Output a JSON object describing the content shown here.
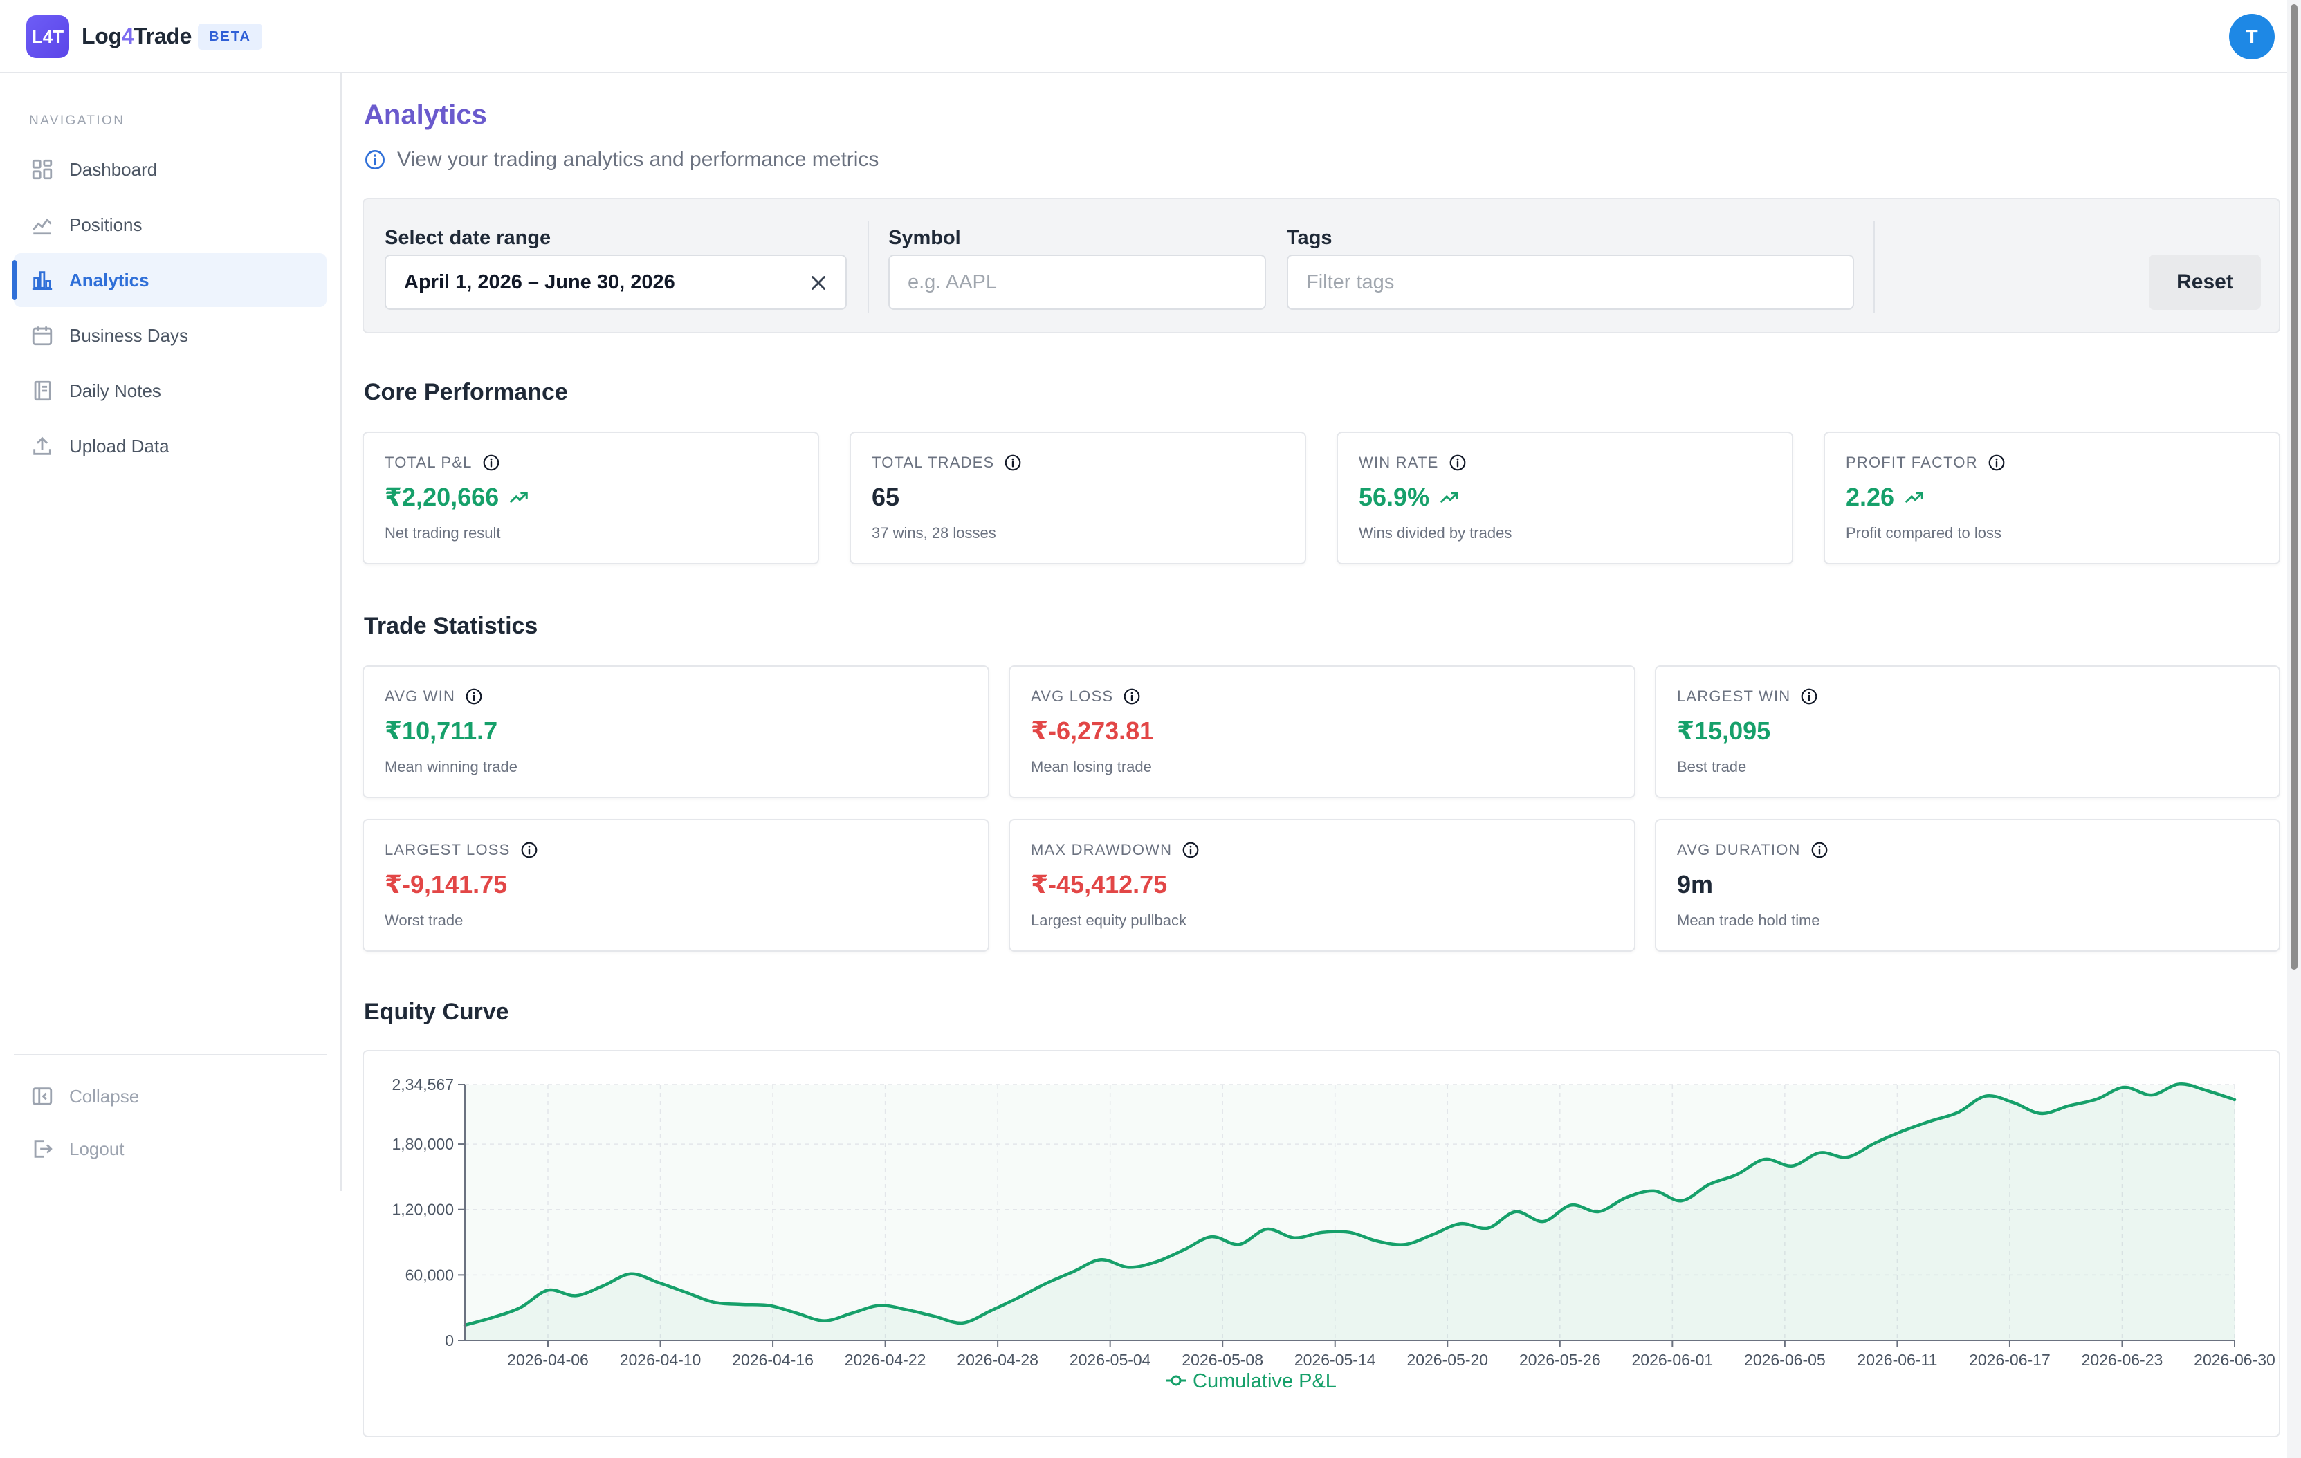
{
  "header": {
    "logo_text": "L4T",
    "app_name_prefix": "Log",
    "app_name_accent": "4",
    "app_name_suffix": "Trade",
    "beta_badge": "BETA",
    "avatar_initial": "T"
  },
  "sidebar": {
    "heading": "NAVIGATION",
    "items": [
      {
        "label": "Dashboard",
        "icon": "grid-icon"
      },
      {
        "label": "Positions",
        "icon": "line-chart-icon"
      },
      {
        "label": "Analytics",
        "icon": "bar-chart-icon",
        "active": true
      },
      {
        "label": "Business Days",
        "icon": "calendar-icon"
      },
      {
        "label": "Daily Notes",
        "icon": "notebook-icon"
      },
      {
        "label": "Upload Data",
        "icon": "upload-icon"
      }
    ],
    "footer": [
      {
        "label": "Collapse",
        "icon": "collapse-icon"
      },
      {
        "label": "Logout",
        "icon": "logout-icon"
      }
    ]
  },
  "page": {
    "title": "Analytics",
    "subtitle": "View your trading analytics and performance metrics"
  },
  "filters": {
    "date_label": "Select date range",
    "date_value": "April 1, 2026 – June 30, 2026",
    "symbol_label": "Symbol",
    "symbol_placeholder": "e.g. AAPL",
    "tags_label": "Tags",
    "tags_placeholder": "Filter tags",
    "reset_label": "Reset"
  },
  "core": {
    "title": "Core Performance",
    "cards": [
      {
        "label": "TOTAL P&L",
        "value": "₹2,20,666",
        "sub": "Net trading result",
        "tone": "green",
        "trend": true
      },
      {
        "label": "TOTAL TRADES",
        "value": "65",
        "sub": "37 wins, 28 losses",
        "tone": "dark",
        "trend": false
      },
      {
        "label": "WIN RATE",
        "value": "56.9%",
        "sub": "Wins divided by trades",
        "tone": "green",
        "trend": true
      },
      {
        "label": "PROFIT FACTOR",
        "value": "2.26",
        "sub": "Profit compared to loss",
        "tone": "green",
        "trend": true
      }
    ]
  },
  "stats": {
    "title": "Trade Statistics",
    "cards": [
      {
        "label": "AVG WIN",
        "value": "₹10,711.7",
        "sub": "Mean winning trade",
        "tone": "green"
      },
      {
        "label": "AVG LOSS",
        "value": "₹-6,273.81",
        "sub": "Mean losing trade",
        "tone": "red"
      },
      {
        "label": "LARGEST WIN",
        "value": "₹15,095",
        "sub": "Best trade",
        "tone": "green"
      },
      {
        "label": "LARGEST LOSS",
        "value": "₹-9,141.75",
        "sub": "Worst trade",
        "tone": "red"
      },
      {
        "label": "MAX DRAWDOWN",
        "value": "₹-45,412.75",
        "sub": "Largest equity pullback",
        "tone": "red"
      },
      {
        "label": "AVG DURATION",
        "value": "9m",
        "sub": "Mean trade hold time",
        "tone": "dark"
      }
    ]
  },
  "equity": {
    "title": "Equity Curve"
  },
  "colors": {
    "accent": "#6a5acd",
    "primary": "#2f6fd8",
    "positive": "#16a06a",
    "negative": "#e24646"
  },
  "chart_data": {
    "type": "area",
    "title": "",
    "xlabel": "",
    "ylabel": "",
    "ylim": [
      0,
      234567
    ],
    "y_ticks": [
      0,
      60000,
      120000,
      180000,
      234567
    ],
    "y_tick_labels": [
      "0",
      "60,000",
      "1,20,000",
      "1,80,000",
      "2,34,567"
    ],
    "x_tick_labels": [
      "2026-04-06",
      "2026-04-10",
      "2026-04-16",
      "2026-04-22",
      "2026-04-28",
      "2026-05-04",
      "2026-05-08",
      "2026-05-14",
      "2026-05-20",
      "2026-05-26",
      "2026-06-01",
      "2026-06-05",
      "2026-06-11",
      "2026-06-17",
      "2026-06-23",
      "2026-06-30"
    ],
    "grid": true,
    "legend_position": "bottom",
    "series": [
      {
        "name": "Cumulative P&L",
        "values": [
          14000,
          21000,
          30000,
          46000,
          41000,
          50000,
          61000,
          53000,
          44000,
          35000,
          33000,
          32000,
          25000,
          18000,
          25000,
          32000,
          28000,
          22000,
          16000,
          27000,
          39000,
          52000,
          63000,
          74000,
          67000,
          72000,
          83000,
          95000,
          88000,
          102000,
          94000,
          99000,
          99000,
          91000,
          88000,
          97000,
          107000,
          103000,
          118000,
          109000,
          124000,
          118000,
          131000,
          137000,
          128000,
          143000,
          152000,
          166000,
          160000,
          172000,
          168000,
          181000,
          192000,
          201000,
          209000,
          224000,
          218000,
          208000,
          215000,
          221000,
          232000,
          225000,
          235000,
          229000,
          220666
        ]
      }
    ]
  }
}
